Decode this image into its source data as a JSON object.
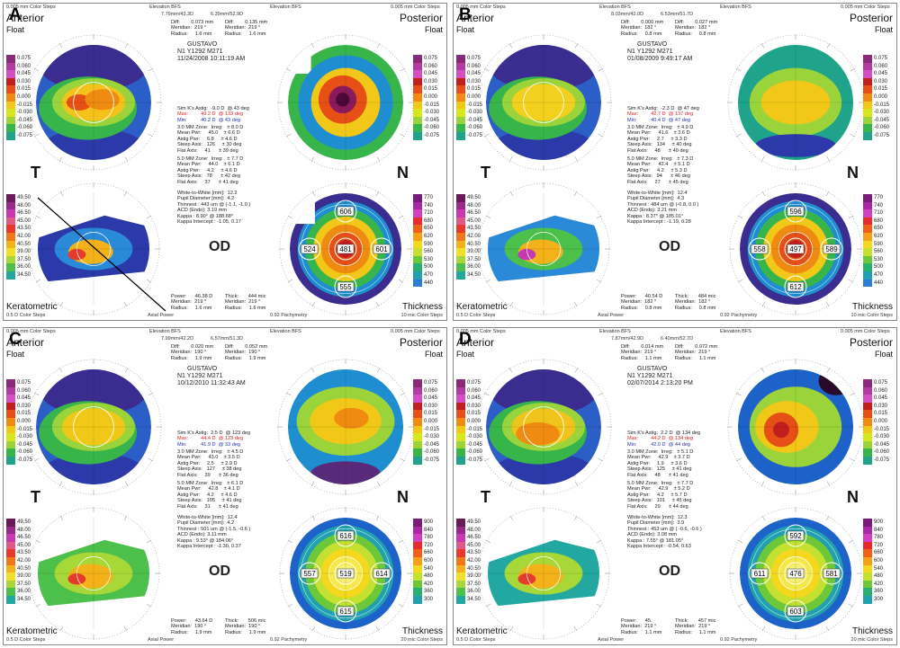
{
  "panels": [
    {
      "letter": "A",
      "hdr_left": "0.005 mm Color Steps",
      "hdr_mid": "Elevation BFS",
      "hdr_right": "0.005 mm Color Steps",
      "mid_left": "7.79mm/43.3D",
      "mid_right": "6.39mm/52.9D",
      "patient": "GUSTAVO",
      "id": "N1 Y1292 M271",
      "date": "11/24/2008 10:11:19 AM",
      "diff_left": "Diff:        0.073 mm\nMeridian:  219 °\nRadius:     1.6 mm",
      "diff_right": "Diff:        0.135 mm\nMeridian:  219 °\nRadius:     1.6 mm",
      "simk": [
        "Sim K's Astig:  -9.0 D  @ 43 deg",
        "Max:         49.2 D  @ 133 deg",
        "Min:          40.2 D  @ 43 deg"
      ],
      "zone3": "3.0 MM Zone:  Irreg:   ± 8.0 D\nMean Pwr:     45.0    ± 6.6 D\nAstig Pwr:     6.8     ± 4.6 D\nSteep Axis:   126     ± 30 deg\nFlat Axis:     41      ± 39 deg",
      "zone5": "5.0 MM Zone:  Irreg:   ± 7.7 D\nMean Pwr:     44.0    ± 6.1 D\nAstig Pwr:     4.2     ± 4.6 D\nSteep Axis:   78      ± 42 deg\nFlat Axis:     37      ± 41 deg",
      "wtw": "White-to-White [mm]:  12.2\nPupil Diameter [mm]:  4.2\nThinnest : 443 um @ (-1.1, -1.0 )\nACD (Endo): 3.19 mm\nKappa : 8.90° @ 188.68°\nKappa Intercept : -1.05, 0.17",
      "pachy": [
        "606",
        "524",
        "481",
        "601",
        "555"
      ],
      "bottom_left": "Power:      46.38 D\nMeridian:  219 °\nRadius:     1.6 mm",
      "bottom_right": "Thick:       444 mic\nMeridian:  219 °\nRadius:     1.6 mm",
      "foot_right": "10 mic Color Steps",
      "scale_left": [
        "0.075",
        "0.060",
        "0.045",
        "0.030",
        "0.015",
        "0.000",
        "-0.015",
        "-0.030",
        "-0.045",
        "-0.060",
        "-0.075"
      ],
      "scale_k": [
        "49.50",
        "48.00",
        "46.50",
        "45.00",
        "43.50",
        "42.00",
        "40.50",
        "39.00",
        "37.50",
        "36.00",
        "34.50"
      ],
      "scale_right": [
        "0.075",
        "0.060",
        "0.045",
        "0.030",
        "0.015",
        "0.000",
        "-0.015",
        "-0.030",
        "-0.045",
        "-0.060",
        "-0.075"
      ],
      "scale_t": [
        "770",
        "740",
        "710",
        "680",
        "650",
        "620",
        "590",
        "560",
        "530",
        "500",
        "470",
        "440"
      ]
    },
    {
      "letter": "B",
      "hdr_left": "0.005 mm Color Steps",
      "hdr_mid": "Elevation BFS",
      "hdr_right": "0.005 mm Color Steps",
      "mid_left": "8.03mm/42.0D",
      "mid_right": "6.53mm/51.7D",
      "patient": "GUSTAVO",
      "id": "N1 Y1292 M271",
      "date": "01/08/2009 9:49:17 AM",
      "diff_left": "Diff:        0.000 mm\nMeridian:  182 °\nRadius:     0.8 mm",
      "diff_right": "Diff:        0.027 mm\nMeridian:  182 °\nRadius:     0.8 mm",
      "simk": [
        "Sim K's Astig:  -2.3 D  @ 47 deg",
        "Max:         42.7 D  @ 137 deg",
        "Min:          40.4 D  @ 47 deg"
      ],
      "zone3": "3.0 MM Zone:  Irreg:   ± 4.9 D\nMean Pwr:     41.6    ± 3.6 D\nAstig Pwr:     2.7     ± 3.3 D\nSteep Axis:   134     ± 40 deg\nFlat Axis:     48      ± 40 deg",
      "zone5": "5.0 MM Zone:  Irreg:   ± 7.3 D\nMean Pwr:     42.4    ± 5.1 D\nAstig Pwr:     4.2     ± 5.3 D\nSteep Axis:   94      ± 46 deg\nFlat Axis:     27      ± 45 deg",
      "wtw": "White-to-White [mm]:  12.4\nPupil Diameter [mm]:  4.3\nThinnest : 484 um @ (-0.8, 0.0 )\nACD (Endo): 3.21 mm\nKappa : 8.37° @ 185.01°\nKappa Intercept : -1.19, 0.28",
      "pachy": [
        "596",
        "558",
        "497",
        "589",
        "612"
      ],
      "bottom_left": "Power:      40.54 D\nMeridian:  182 °\nRadius:     0.8 mm",
      "bottom_right": "Thick:       484 mic\nMeridian:  182 °\nRadius:     0.8 mm",
      "foot_right": "10 mic Color Steps",
      "scale_left": [
        "0.075",
        "0.060",
        "0.045",
        "0.030",
        "0.015",
        "0.000",
        "-0.015",
        "-0.030",
        "-0.045",
        "-0.060",
        "-0.075"
      ],
      "scale_k": [
        "49.50",
        "48.00",
        "46.50",
        "45.00",
        "43.50",
        "42.00",
        "40.50",
        "39.00",
        "37.50",
        "36.00",
        "34.50"
      ],
      "scale_right": [
        "0.075",
        "0.060",
        "0.045",
        "0.030",
        "0.015",
        "0.000",
        "-0.015",
        "-0.030",
        "-0.045",
        "-0.060",
        "-0.075"
      ],
      "scale_t": [
        "770",
        "740",
        "710",
        "680",
        "650",
        "620",
        "590",
        "560",
        "530",
        "500",
        "470",
        "440"
      ]
    },
    {
      "letter": "C",
      "hdr_left": "0.005 mm Color Steps",
      "hdr_mid": "Elevation BFS",
      "hdr_right": "0.005 mm Color Steps",
      "mid_left": "7.99mm/42.2D",
      "mid_right": "6.57mm/51.3D",
      "patient": "GUSTAVO",
      "id": "N1 Y1292 M271",
      "date": "10/12/2010 11:32:43 AM",
      "diff_left": "Diff:        0.020 mm\nMeridian:  190 °\nRadius:     1.9 mm",
      "diff_right": "Diff:        0.052 mm\nMeridian:  190 °\nRadius:     1.9 mm",
      "simk": [
        "Sim K's Astig:  2.5 D  @ 123 deg",
        "Max:         44.4 D  @ 123 deg",
        "Min:          41.9 D  @ 33 deg"
      ],
      "zone3": "3.0 MM Zone:  Irreg:   ± 4.5 D\nMean Pwr:     43.0    ± 3.5 D\nAstig Pwr:     2.5     ± 2.9 D\nSteep Axis:   127     ± 38 deg\nFlat Axis:     39      ± 36 deg",
      "zone5": "5.0 MM Zone:  Irreg:   ± 6.1 D\nMean Pwr:     42.8    ± 4.1 D\nAstig Pwr:     4.2     ± 4.6 D\nSteep Axis:   105     ± 41 deg\nFlat Axis:     31      ± 41 deg",
      "wtw": "White-to-White [mm]:  12.4\nPupil Diameter [mm]:  4.2\nThinnest : 501 um @ (-1.5, -0.6 )\nACD (Endo): 3.11 mm\nKappa : 9.53° @ 184.06°\nKappa Intercept : -1.30, 0.37",
      "pachy": [
        "616",
        "557",
        "519",
        "614",
        "615"
      ],
      "bottom_left": "Power:      43.64 D\nMeridian:  190 °\nRadius:     1.9 mm",
      "bottom_right": "Thick:       506 mic\nMeridian:  190 °\nRadius:     1.9 mm",
      "foot_right": "20 mic Color Steps",
      "scale_left": [
        "0.075",
        "0.060",
        "0.045",
        "0.030",
        "0.015",
        "0.000",
        "-0.015",
        "-0.030",
        "-0.045",
        "-0.060",
        "-0.075"
      ],
      "scale_k": [
        "49.50",
        "48.00",
        "46.50",
        "45.00",
        "43.50",
        "42.00",
        "40.50",
        "39.00",
        "37.50",
        "36.00",
        "34.50"
      ],
      "scale_right": [
        "0.075",
        "0.060",
        "0.045",
        "0.030",
        "0.015",
        "0.000",
        "-0.015",
        "-0.030",
        "-0.045",
        "-0.060",
        "-0.075"
      ],
      "scale_t": [
        "900",
        "840",
        "780",
        "720",
        "660",
        "600",
        "540",
        "480",
        "420",
        "360",
        "300"
      ]
    },
    {
      "letter": "D",
      "hdr_left": "0.005 mm Color Steps",
      "hdr_mid": "Elevation BFS",
      "hdr_right": "0.005 mm Color Steps",
      "mid_left": "7.87mm/42.9D",
      "mid_right": "6.40mm/52.7D",
      "patient": "GUSTAVO",
      "id": "N1 Y1292 M271",
      "date": "02/07/2014 2:13:20 PM",
      "diff_left": "Diff:        0.014 mm\nMeridian:  219 °\nRadius:     1.1 mm",
      "diff_right": "Diff:        0.072 mm\nMeridian:  219 °\nRadius:     1.1 mm",
      "simk": [
        "Sim K's Astig:  2.2 D  @ 134 deg",
        "Max:         44.2 D  @ 134 deg",
        "Min:          42.0 D  @ 44 deg"
      ],
      "zone3": "3.0 MM Zone:  Irreg:   ± 5.1 D\nMean Pwr:     42.9    ± 3.7 D\nAstig Pwr:     1.9     ± 3.6 D\nSteep Axis:   125     ± 41 deg\nFlat Axis:     48      ± 41 deg",
      "zone5": "5.0 MM Zone:  Irreg:   ± 7.7 D\nMean Pwr:     42.9    ± 5.2 D\nAstig Pwr:     4.2     ± 5.7 D\nSteep Axis:   101     ± 45 deg\nFlat Axis:     29      ± 44 deg",
      "wtw": "White-to-White [mm]:  12.3\nPupil Diameter [mm]:  3.9\nThinnest : 453 um @ ( -0.6, -0.6 )\nACD (Endo): 3.08 mm\nKappa : 7.55° @ 181.05°\nKappa Intercept : -0.54, 0.63",
      "pachy": [
        "592",
        "611",
        "476",
        "581",
        "603"
      ],
      "bottom_left": "Power:      45.     \nMeridian:  219 °\nRadius:     1.1 mm",
      "bottom_right": "Thick:       457 mic\nMeridian:  219 °\nRadius:     1.1 mm",
      "foot_right": "20 mic Color Steps",
      "scale_left": [
        "0.075",
        "0.060",
        "0.045",
        "0.030",
        "0.015",
        "0.000",
        "-0.015",
        "-0.030",
        "-0.045",
        "-0.060",
        "-0.075"
      ],
      "scale_k": [
        "49.50",
        "48.00",
        "46.50",
        "45.00",
        "43.50",
        "42.00",
        "40.50",
        "39.00",
        "37.50",
        "36.00",
        "34.50"
      ],
      "scale_right": [
        "0.075",
        "0.060",
        "0.045",
        "0.030",
        "0.015",
        "0.000",
        "-0.015",
        "-0.030",
        "-0.045",
        "-0.060",
        "-0.075"
      ],
      "scale_t": [
        "900",
        "840",
        "780",
        "720",
        "660",
        "600",
        "540",
        "480",
        "420",
        "360",
        "300"
      ]
    }
  ],
  "labels": {
    "anterior": "Anterior",
    "float": "Float",
    "posterior": "Posterior",
    "t": "T",
    "n": "N",
    "od": "OD",
    "keratometric": "Keratometric",
    "thickness": "Thickness",
    "foot_left": "0.5 D Color Steps",
    "axial_power": "Axial Power",
    "pachymetry": "0.92 Pachymetry"
  }
}
